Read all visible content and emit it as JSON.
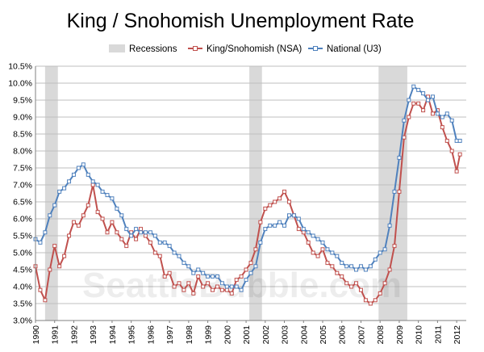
{
  "chart_data": {
    "type": "line",
    "title": "King / Snohomish Unemployment Rate",
    "xlabel": "",
    "ylabel": "",
    "xlim": [
      1990.0,
      2012.5
    ],
    "ylim": [
      3.0,
      10.5
    ],
    "yticks": [
      "3.0%",
      "3.5%",
      "4.0%",
      "4.5%",
      "5.0%",
      "5.5%",
      "6.0%",
      "6.5%",
      "7.0%",
      "7.5%",
      "8.0%",
      "8.5%",
      "9.0%",
      "9.5%",
      "10.0%",
      "10.5%"
    ],
    "xticks": [
      "1990",
      "1991",
      "1992",
      "1993",
      "1994",
      "1995",
      "1996",
      "1997",
      "1998",
      "1999",
      "2000",
      "2001",
      "2002",
      "2003",
      "2004",
      "2005",
      "2006",
      "2007",
      "2008",
      "2009",
      "2010",
      "2011",
      "2012"
    ],
    "grid": true,
    "legend_position": "top",
    "legend": [
      "Recessions",
      "King/Snohomish (NSA)",
      "National (U3)"
    ],
    "recessions": [
      {
        "name": "Recessions",
        "start": 1990.5,
        "end": 1991.17
      },
      {
        "name": "Recessions",
        "start": 2001.17,
        "end": 2001.83
      },
      {
        "name": "Recessions",
        "start": 2007.92,
        "end": 2009.42
      }
    ],
    "series": [
      {
        "name": "King/Snohomish (NSA)",
        "color": "#c0504d",
        "x": [
          1990.0,
          1990.25,
          1990.5,
          1990.75,
          1991.0,
          1991.25,
          1991.5,
          1991.75,
          1992.0,
          1992.25,
          1992.5,
          1992.75,
          1993.0,
          1993.25,
          1993.5,
          1993.75,
          1994.0,
          1994.25,
          1994.5,
          1994.75,
          1995.0,
          1995.25,
          1995.5,
          1995.75,
          1996.0,
          1996.25,
          1996.5,
          1996.75,
          1997.0,
          1997.25,
          1997.5,
          1997.75,
          1998.0,
          1998.25,
          1998.5,
          1998.75,
          1999.0,
          1999.25,
          1999.5,
          1999.75,
          2000.0,
          2000.25,
          2000.5,
          2000.75,
          2001.0,
          2001.25,
          2001.5,
          2001.75,
          2002.0,
          2002.25,
          2002.5,
          2002.75,
          2003.0,
          2003.25,
          2003.5,
          2003.75,
          2004.0,
          2004.25,
          2004.5,
          2004.75,
          2005.0,
          2005.25,
          2005.5,
          2005.75,
          2006.0,
          2006.25,
          2006.5,
          2006.75,
          2007.0,
          2007.25,
          2007.5,
          2007.75,
          2008.0,
          2008.25,
          2008.5,
          2008.75,
          2009.0,
          2009.25,
          2009.5,
          2009.75,
          2010.0,
          2010.25,
          2010.5,
          2010.75,
          2011.0,
          2011.25,
          2011.5,
          2011.75,
          2012.0,
          2012.17
        ],
        "values": [
          4.6,
          3.9,
          3.6,
          4.5,
          5.2,
          4.6,
          4.9,
          5.5,
          5.9,
          5.8,
          6.1,
          6.4,
          7.0,
          6.2,
          6.0,
          5.6,
          5.9,
          5.6,
          5.4,
          5.2,
          5.6,
          5.4,
          5.7,
          5.5,
          5.3,
          5.0,
          4.9,
          4.3,
          4.4,
          4.0,
          4.1,
          3.9,
          4.1,
          3.8,
          4.3,
          4.0,
          4.1,
          3.9,
          4.0,
          3.9,
          3.9,
          3.8,
          4.2,
          4.3,
          4.5,
          4.7,
          5.1,
          5.9,
          6.3,
          6.4,
          6.5,
          6.6,
          6.8,
          6.5,
          6.1,
          5.7,
          5.6,
          5.3,
          5.0,
          4.9,
          5.1,
          4.7,
          4.6,
          4.4,
          4.3,
          4.1,
          4.0,
          4.1,
          3.9,
          3.6,
          3.5,
          3.6,
          3.8,
          4.1,
          4.5,
          5.2,
          6.8,
          8.4,
          9.0,
          9.4,
          9.4,
          9.2,
          9.6,
          9.1,
          9.2,
          8.7,
          8.3,
          8.0,
          7.4,
          7.9
        ]
      },
      {
        "name": "National (U3)",
        "color": "#4f81bd",
        "x": [
          1990.0,
          1990.25,
          1990.5,
          1990.75,
          1991.0,
          1991.25,
          1991.5,
          1991.75,
          1992.0,
          1992.25,
          1992.5,
          1992.75,
          1993.0,
          1993.25,
          1993.5,
          1993.75,
          1994.0,
          1994.25,
          1994.5,
          1994.75,
          1995.0,
          1995.25,
          1995.5,
          1995.75,
          1996.0,
          1996.25,
          1996.5,
          1996.75,
          1997.0,
          1997.25,
          1997.5,
          1997.75,
          1998.0,
          1998.25,
          1998.5,
          1998.75,
          1999.0,
          1999.25,
          1999.5,
          1999.75,
          2000.0,
          2000.25,
          2000.5,
          2000.75,
          2001.0,
          2001.25,
          2001.5,
          2001.75,
          2002.0,
          2002.25,
          2002.5,
          2002.75,
          2003.0,
          2003.25,
          2003.5,
          2003.75,
          2004.0,
          2004.25,
          2004.5,
          2004.75,
          2005.0,
          2005.25,
          2005.5,
          2005.75,
          2006.0,
          2006.25,
          2006.5,
          2006.75,
          2007.0,
          2007.25,
          2007.5,
          2007.75,
          2008.0,
          2008.25,
          2008.5,
          2008.75,
          2009.0,
          2009.25,
          2009.5,
          2009.75,
          2010.0,
          2010.25,
          2010.5,
          2010.75,
          2011.0,
          2011.25,
          2011.5,
          2011.75,
          2012.0,
          2012.17
        ],
        "values": [
          5.4,
          5.3,
          5.6,
          6.1,
          6.4,
          6.8,
          6.9,
          7.1,
          7.3,
          7.5,
          7.6,
          7.3,
          7.1,
          7.0,
          6.8,
          6.7,
          6.6,
          6.3,
          6.1,
          5.7,
          5.5,
          5.7,
          5.6,
          5.6,
          5.6,
          5.5,
          5.3,
          5.3,
          5.2,
          5.0,
          4.9,
          4.7,
          4.6,
          4.4,
          4.5,
          4.4,
          4.3,
          4.3,
          4.3,
          4.1,
          4.0,
          4.0,
          4.0,
          3.9,
          4.2,
          4.4,
          4.6,
          5.3,
          5.7,
          5.8,
          5.8,
          5.9,
          5.8,
          6.1,
          6.1,
          6.0,
          5.7,
          5.6,
          5.5,
          5.4,
          5.3,
          5.1,
          5.0,
          4.9,
          4.7,
          4.6,
          4.6,
          4.5,
          4.6,
          4.5,
          4.6,
          4.8,
          5.0,
          5.1,
          5.8,
          6.8,
          7.8,
          8.9,
          9.5,
          9.9,
          9.8,
          9.7,
          9.5,
          9.6,
          9.1,
          9.0,
          9.1,
          8.9,
          8.3,
          8.3
        ]
      }
    ]
  },
  "watermark": "SeattleBubble.com"
}
